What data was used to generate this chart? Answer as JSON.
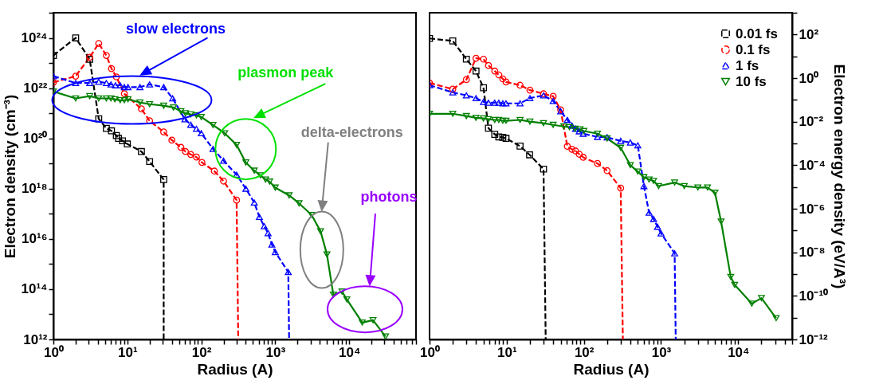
{
  "chart_data": [
    {
      "type": "line",
      "xlabel": "Radius (A)",
      "ylabel": "Electron density (cm⁻³)",
      "log": "xy",
      "legend": false,
      "grid": false,
      "xlim": [
        1,
        80000
      ],
      "ylim": [
        1000000000000.0,
        1e+25
      ],
      "xticks": [
        {
          "value": 1,
          "label": "10⁰"
        },
        {
          "value": 2,
          "label": null
        },
        {
          "value": 3,
          "label": null
        },
        {
          "value": 4,
          "label": null
        },
        {
          "value": 5,
          "label": null
        },
        {
          "value": 6,
          "label": null
        },
        {
          "value": 7,
          "label": null
        },
        {
          "value": 8,
          "label": null
        },
        {
          "value": 9,
          "label": null
        },
        {
          "value": 10,
          "label": "10¹"
        },
        {
          "value": 20,
          "label": null
        },
        {
          "value": 30,
          "label": null
        },
        {
          "value": 40,
          "label": null
        },
        {
          "value": 50,
          "label": null
        },
        {
          "value": 60,
          "label": null
        },
        {
          "value": 70,
          "label": null
        },
        {
          "value": 80,
          "label": null
        },
        {
          "value": 90,
          "label": null
        },
        {
          "value": 100,
          "label": "10²"
        },
        {
          "value": 200,
          "label": null
        },
        {
          "value": 300,
          "label": null
        },
        {
          "value": 400,
          "label": null
        },
        {
          "value": 500,
          "label": null
        },
        {
          "value": 600,
          "label": null
        },
        {
          "value": 700,
          "label": null
        },
        {
          "value": 800,
          "label": null
        },
        {
          "value": 900,
          "label": null
        },
        {
          "value": 1000,
          "label": "10³"
        },
        {
          "value": 2000,
          "label": null
        },
        {
          "value": 3000,
          "label": null
        },
        {
          "value": 4000,
          "label": null
        },
        {
          "value": 5000,
          "label": null
        },
        {
          "value": 6000,
          "label": null
        },
        {
          "value": 7000,
          "label": null
        },
        {
          "value": 8000,
          "label": null
        },
        {
          "value": 9000,
          "label": null
        },
        {
          "value": 10000,
          "label": "10⁴"
        },
        {
          "value": 20000,
          "label": null
        },
        {
          "value": 30000,
          "label": null
        },
        {
          "value": 40000,
          "label": null
        },
        {
          "value": 50000,
          "label": null
        },
        {
          "value": 60000,
          "label": null
        },
        {
          "value": 70000,
          "label": null
        },
        {
          "value": 80000,
          "label": null
        }
      ],
      "yticks": [
        {
          "value": 1000000000000.0,
          "label": "10¹²"
        },
        {
          "value": 10000000000000.0,
          "label": null
        },
        {
          "value": 100000000000000.0,
          "label": "10¹⁴"
        },
        {
          "value": 1000000000000000.0,
          "label": null
        },
        {
          "value": 1e+16,
          "label": "10¹⁶"
        },
        {
          "value": 1e+17,
          "label": null
        },
        {
          "value": 1e+18,
          "label": "10¹⁸"
        },
        {
          "value": 1e+19,
          "label": null
        },
        {
          "value": 1e+20,
          "label": "10²⁰"
        },
        {
          "value": 1e+21,
          "label": null
        },
        {
          "value": 1e+22,
          "label": "10²²"
        },
        {
          "value": 1e+23,
          "label": null
        },
        {
          "value": 1e+24,
          "label": "10²⁴"
        },
        {
          "value": 1e+25,
          "label": null
        }
      ],
      "annotations": [
        "slow electrons",
        "plasmon peak",
        "delta-electrons",
        "photons"
      ],
      "series": [
        {
          "color": "#000000",
          "marker": "square",
          "line_style": "dashed",
          "x": [
            1,
            2,
            3.1,
            4.1,
            5.2,
            6.1,
            7.1,
            7.6,
            8.6,
            10,
            15.5,
            20,
            31,
            31
          ],
          "values": [
            2e+23,
            1e+24,
            1.4e+23,
            6e+20,
            2.5e+20,
            2e+20,
            1.3e+20,
            1e+20,
            8e+19,
            6e+19,
            3e+19,
            1.2e+19,
            2.3e+18,
            1000000000000.0
          ]
        },
        {
          "color": "#ff0000",
          "marker": "circle",
          "line_style": "dashed",
          "x": [
            1,
            2,
            3.1,
            4.1,
            5.2,
            6.1,
            7.1,
            9.1,
            15.5,
            20,
            31,
            40,
            53,
            61,
            72,
            86,
            102,
            150,
            200,
            300,
            316
          ],
          "values": [
            1.7e+22,
            3e+22,
            1.7e+23,
            6e+23,
            2e+23,
            6e+22,
            2.8e+22,
            6e+21,
            1.5e+21,
            5e+20,
            1.8e+20,
            8.5e+19,
            4.4e+19,
            3e+19,
            2.3e+19,
            1.8e+19,
            1.1e+19,
            5e+18,
            2e+18,
            3.5e+17,
            1000000000000.0
          ]
        },
        {
          "color": "#0000ff",
          "marker": "triangle",
          "line_style": "dashed",
          "x": [
            1,
            2,
            3.1,
            4.1,
            5.2,
            6,
            6.9,
            8,
            9.1,
            10.2,
            14.8,
            20,
            31,
            41,
            60,
            72,
            86,
            100,
            144,
            200,
            300,
            400,
            520,
            610,
            710,
            800,
            900,
            1000,
            1500,
            1540
          ],
          "values": [
            3e+22,
            1.6e+22,
            1.6e+22,
            1.8e+22,
            1.6e+22,
            1.4e+22,
            1.3e+22,
            1.3e+22,
            1.1e+22,
            1.1e+22,
            1.1e+22,
            1.4e+22,
            1.1e+22,
            3.9e+21,
            5.8e+20,
            3.5e+20,
            2.4e+20,
            1.6e+20,
            3.8e+19,
            1.3e+19,
            3.6e+18,
            1e+18,
            2.8e+17,
            7.5e+16,
            3.2e+16,
            1.7e+16,
            6000000000000000.0,
            3000000000000000.0,
            480000000000000.0,
            1000000000000.0
          ]
        },
        {
          "color": "#008000",
          "marker": "triangle-down",
          "line_style": "solid",
          "x": [
            1,
            2,
            3.1,
            4.1,
            5.2,
            6,
            6.8,
            8,
            9.1,
            10.2,
            14.8,
            20,
            31,
            42,
            53,
            61,
            72,
            86,
            100,
            144,
            207,
            300,
            400,
            520,
            630,
            740,
            840,
            1000,
            1540,
            2100,
            3100,
            4100,
            5000,
            6100,
            8000,
            9300,
            15000,
            21000,
            31000
          ],
          "values": [
            7.4e+21,
            3.9e+21,
            4.8e+21,
            3.9e+21,
            3.9e+21,
            3.9e+21,
            3.6e+21,
            3.3e+21,
            3.3e+21,
            3.6e+21,
            2.7e+21,
            2.3e+21,
            2e+21,
            1.7e+21,
            1.2e+21,
            1e+21,
            9e+20,
            8.3e+20,
            7.1e+20,
            3.4e+20,
            1.6e+20,
            5.5e+19,
            1.1e+19,
            5.2e+18,
            3.4e+18,
            2.3e+18,
            1.9e+18,
            1.1e+18,
            5.4e+17,
            2.6e+17,
            9e+16,
            2e+16,
            2400000000000000.0,
            60000000000000.0,
            80000000000000.0,
            39000000000000.0,
            4700000000000.0,
            5800000000000.0,
            1300000000000.0
          ]
        }
      ]
    },
    {
      "type": "line",
      "xlabel": "Radius (A)",
      "ylabel": "Electron energy density (eV/A³)",
      "log": "xy",
      "legend": "top right",
      "grid": false,
      "xlim": [
        1,
        50000
      ],
      "ylim": [
        1e-12,
        1000.0
      ],
      "xticks": [
        {
          "value": 1,
          "label": "10⁰"
        },
        {
          "value": 2,
          "label": null
        },
        {
          "value": 3,
          "label": null
        },
        {
          "value": 4,
          "label": null
        },
        {
          "value": 5,
          "label": null
        },
        {
          "value": 6,
          "label": null
        },
        {
          "value": 7,
          "label": null
        },
        {
          "value": 8,
          "label": null
        },
        {
          "value": 9,
          "label": null
        },
        {
          "value": 10,
          "label": "10¹"
        },
        {
          "value": 20,
          "label": null
        },
        {
          "value": 30,
          "label": null
        },
        {
          "value": 40,
          "label": null
        },
        {
          "value": 50,
          "label": null
        },
        {
          "value": 60,
          "label": null
        },
        {
          "value": 70,
          "label": null
        },
        {
          "value": 80,
          "label": null
        },
        {
          "value": 90,
          "label": null
        },
        {
          "value": 100,
          "label": "10²"
        },
        {
          "value": 200,
          "label": null
        },
        {
          "value": 300,
          "label": null
        },
        {
          "value": 400,
          "label": null
        },
        {
          "value": 500,
          "label": null
        },
        {
          "value": 600,
          "label": null
        },
        {
          "value": 700,
          "label": null
        },
        {
          "value": 800,
          "label": null
        },
        {
          "value": 900,
          "label": null
        },
        {
          "value": 1000,
          "label": "10³"
        },
        {
          "value": 2000,
          "label": null
        },
        {
          "value": 3000,
          "label": null
        },
        {
          "value": 4000,
          "label": null
        },
        {
          "value": 5000,
          "label": null
        },
        {
          "value": 6000,
          "label": null
        },
        {
          "value": 7000,
          "label": null
        },
        {
          "value": 8000,
          "label": null
        },
        {
          "value": 9000,
          "label": null
        },
        {
          "value": 10000,
          "label": "10⁴"
        },
        {
          "value": 20000,
          "label": null
        },
        {
          "value": 30000,
          "label": null
        },
        {
          "value": 40000,
          "label": null
        },
        {
          "value": 50000,
          "label": null
        }
      ],
      "yticks": [
        {
          "value": 1e-12,
          "label": "10⁻¹²"
        },
        {
          "value": 1e-11,
          "label": null
        },
        {
          "value": 1e-10,
          "label": "10⁻¹⁰"
        },
        {
          "value": 1e-09,
          "label": null
        },
        {
          "value": 1e-08,
          "label": "10⁻⁸"
        },
        {
          "value": 1e-07,
          "label": null
        },
        {
          "value": 1e-06,
          "label": "10⁻⁶"
        },
        {
          "value": 1e-05,
          "label": null
        },
        {
          "value": 0.0001,
          "label": "10⁻⁴"
        },
        {
          "value": 0.001,
          "label": null
        },
        {
          "value": 0.01,
          "label": "10⁻²"
        },
        {
          "value": 0.1,
          "label": null
        },
        {
          "value": 1,
          "label": "10⁰"
        },
        {
          "value": 10,
          "label": null
        },
        {
          "value": 100,
          "label": "10²"
        },
        {
          "value": 1000,
          "label": null
        }
      ],
      "series": [
        {
          "name": "0.01 fs",
          "color": "#000000",
          "marker": "square",
          "line_style": "dashed",
          "x": [
            1,
            2,
            3,
            4,
            5,
            5.8,
            7,
            7.9,
            8.9,
            9.8,
            14.9,
            19.8,
            30,
            32
          ],
          "values": [
            66,
            51,
            7.4,
            2.1,
            0.36,
            0.005,
            0.0026,
            0.002,
            0.0019,
            0.0017,
            0.00075,
            0.0003,
            6.6e-05,
            1e-12
          ]
        },
        {
          "name": "0.1 fs",
          "color": "#ff0000",
          "marker": "circle",
          "line_style": "dashed",
          "x": [
            1,
            2,
            3,
            4,
            5,
            5.8,
            7,
            7.9,
            8.9,
            9.8,
            14.9,
            20,
            30,
            40,
            50,
            61,
            70,
            78,
            87,
            98,
            150,
            200,
            300,
            320
          ],
          "values": [
            0.6,
            0.31,
            0.85,
            8.1,
            7.4,
            3.8,
            2.1,
            1.4,
            0.92,
            0.66,
            0.47,
            0.28,
            0.19,
            0.145,
            0.035,
            0.00074,
            0.00054,
            0.00045,
            0.00032,
            0.00023,
            0.00012,
            5.6e-05,
            8.9e-06,
            1e-12
          ]
        },
        {
          "name": "1 fs",
          "color": "#0000ff",
          "marker": "triangle",
          "line_style": "dashed",
          "x": [
            1,
            2,
            3,
            4,
            5,
            5.8,
            7,
            7.9,
            8.9,
            9.8,
            14.9,
            20,
            30,
            40,
            50,
            61,
            70,
            78,
            87,
            98,
            150,
            200,
            300,
            400,
            500,
            600,
            700,
            800,
            900,
            1000,
            1500,
            1550
          ],
          "values": [
            0.47,
            0.22,
            0.16,
            0.12,
            0.081,
            0.074,
            0.074,
            0.074,
            0.069,
            0.069,
            0.069,
            0.12,
            0.16,
            0.089,
            0.03,
            0.012,
            0.0066,
            0.0047,
            0.0036,
            0.0028,
            0.002,
            0.0019,
            0.0013,
            0.0011,
            0.00081,
            1.1e-05,
            6.6e-07,
            3.4e-07,
            1.5e-07,
            7.4e-08,
            9e-09,
            1e-12
          ]
        },
        {
          "name": "10 fs",
          "color": "#008000",
          "marker": "triangle-down",
          "line_style": "solid",
          "x": [
            1,
            2,
            3,
            4,
            5,
            5.8,
            7,
            7.9,
            8.9,
            9.8,
            14.9,
            20,
            30,
            40,
            55,
            65,
            77,
            89,
            100,
            150,
            200,
            300,
            400,
            500,
            600,
            700,
            800,
            930,
            1500,
            2000,
            3000,
            4000,
            5000,
            6000,
            8000,
            9000,
            15000,
            20000,
            31000
          ],
          "values": [
            0.023,
            0.023,
            0.018,
            0.015,
            0.014,
            0.013,
            0.012,
            0.012,
            0.011,
            0.011,
            0.012,
            0.01,
            0.0085,
            0.0071,
            0.006,
            0.0056,
            0.0047,
            0.0044,
            0.0037,
            0.0028,
            0.0017,
            0.00063,
            0.0001,
            5.1e-05,
            2.8e-05,
            2.2e-05,
            1.9e-05,
            1.1e-05,
            1.6e-05,
            1.1e-05,
            9.5e-06,
            9.5e-06,
            5.4e-06,
            2.6e-07,
            7.4e-10,
            3.2e-10,
            4.4e-11,
            7.9e-11,
            9.5e-12
          ]
        }
      ]
    }
  ]
}
